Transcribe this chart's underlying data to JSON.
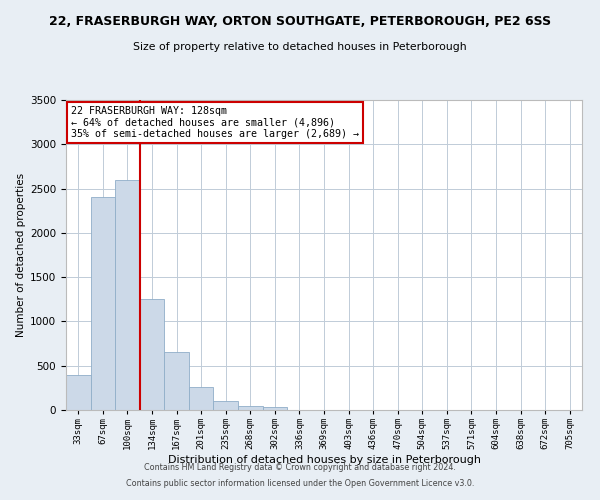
{
  "title_main": "22, FRASERBURGH WAY, ORTON SOUTHGATE, PETERBOROUGH, PE2 6SS",
  "title_sub": "Size of property relative to detached houses in Peterborough",
  "xlabel": "Distribution of detached houses by size in Peterborough",
  "ylabel": "Number of detached properties",
  "bar_values": [
    400,
    2400,
    2600,
    1250,
    650,
    260,
    100,
    50,
    30,
    0,
    0,
    0,
    0,
    0,
    0,
    0,
    0,
    0,
    0,
    0,
    0
  ],
  "bin_labels": [
    "33sqm",
    "67sqm",
    "100sqm",
    "134sqm",
    "167sqm",
    "201sqm",
    "235sqm",
    "268sqm",
    "302sqm",
    "336sqm",
    "369sqm",
    "403sqm",
    "436sqm",
    "470sqm",
    "504sqm",
    "537sqm",
    "571sqm",
    "604sqm",
    "638sqm",
    "672sqm",
    "705sqm"
  ],
  "bar_color": "#ccd9e8",
  "bar_edge_color": "#90aec8",
  "vline_color": "#cc0000",
  "ylim": [
    0,
    3500
  ],
  "yticks": [
    0,
    500,
    1000,
    1500,
    2000,
    2500,
    3000,
    3500
  ],
  "annotation_line1": "22 FRASERBURGH WAY: 128sqm",
  "annotation_line2": "← 64% of detached houses are smaller (4,896)",
  "annotation_line3": "35% of semi-detached houses are larger (2,689) →",
  "annotation_box_color": "#cc0000",
  "annotation_box_bg": "#ffffff",
  "footer1": "Contains HM Land Registry data © Crown copyright and database right 2024.",
  "footer2": "Contains public sector information licensed under the Open Government Licence v3.0.",
  "bg_color": "#e8eef4",
  "plot_bg_color": "#ffffff",
  "grid_color": "#c0ccd8"
}
